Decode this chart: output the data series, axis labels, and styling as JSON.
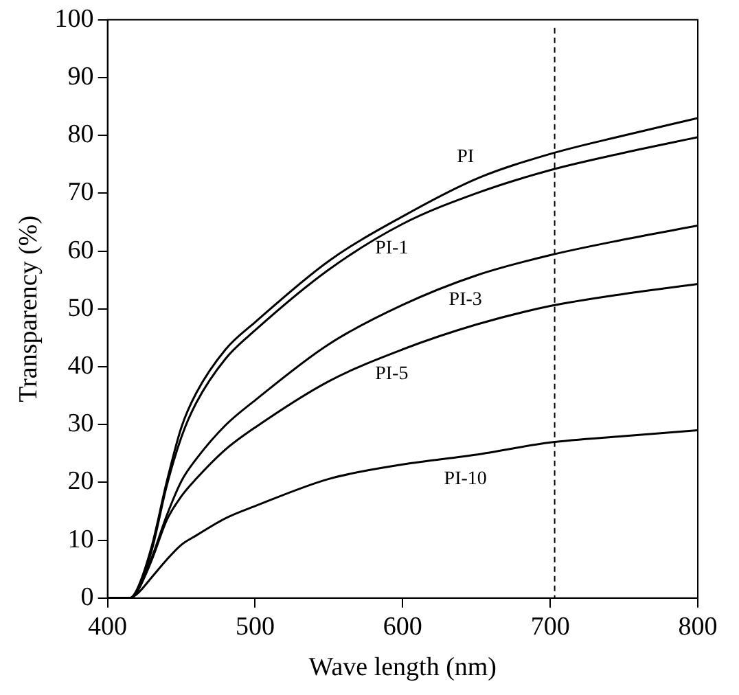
{
  "chart_data": {
    "type": "line",
    "xlabel": "Wave length (nm)",
    "ylabel": "Transparency (%)",
    "x": [
      400,
      415,
      420,
      430,
      440,
      450,
      460,
      480,
      500,
      550,
      600,
      650,
      700,
      750,
      800
    ],
    "series": [
      {
        "name": "PI",
        "color": "#000000",
        "values": [
          0,
          0,
          1.5,
          9,
          20,
          29.5,
          35.4,
          43,
          47.7,
          58.3,
          66,
          72.5,
          76.8,
          80,
          83
        ]
      },
      {
        "name": "PI-1",
        "color": "#000000",
        "values": [
          0,
          0,
          1.1,
          8.3,
          19.3,
          27.8,
          33.7,
          41.4,
          46.3,
          56.8,
          64.7,
          70,
          74,
          77,
          79.7
        ]
      },
      {
        "name": "PI-3",
        "color": "#000000",
        "values": [
          0,
          0,
          1.1,
          7,
          14.2,
          20.2,
          24,
          29.9,
          34.2,
          43.9,
          50.7,
          55.8,
          59.3,
          62,
          64.4
        ]
      },
      {
        "name": "PI-5",
        "color": "#000000",
        "values": [
          0,
          0,
          1.1,
          6.6,
          13.4,
          17.6,
          20.6,
          25.7,
          29.5,
          37.5,
          43,
          47.3,
          50.5,
          52.6,
          54.3
        ]
      },
      {
        "name": "PI-10",
        "color": "#000000",
        "values": [
          0,
          0,
          0.7,
          3.6,
          6.6,
          9.2,
          10.8,
          13.8,
          15.9,
          20.6,
          23.1,
          24.8,
          26.9,
          28,
          29
        ]
      }
    ],
    "ref_lines": [
      {
        "axis": "x",
        "value": 703,
        "color": "#000000",
        "line_style": "dashed"
      }
    ],
    "xlim": [
      400,
      800
    ],
    "xticks": [
      400,
      500,
      600,
      700,
      800
    ],
    "ylim": [
      0,
      100
    ],
    "yticks": [
      0,
      10,
      20,
      30,
      40,
      50,
      60,
      70,
      80,
      90,
      100
    ],
    "grid": false,
    "legend": false,
    "marker": "none",
    "line_style": "solid"
  }
}
